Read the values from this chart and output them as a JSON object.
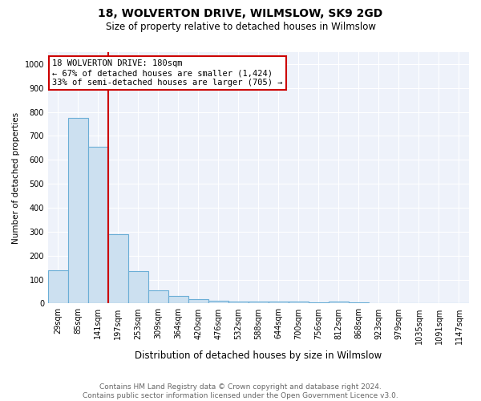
{
  "title": "18, WOLVERTON DRIVE, WILMSLOW, SK9 2GD",
  "subtitle": "Size of property relative to detached houses in Wilmslow",
  "xlabel": "Distribution of detached houses by size in Wilmslow",
  "ylabel": "Number of detached properties",
  "bar_labels": [
    "29sqm",
    "85sqm",
    "141sqm",
    "197sqm",
    "253sqm",
    "309sqm",
    "364sqm",
    "420sqm",
    "476sqm",
    "532sqm",
    "588sqm",
    "644sqm",
    "700sqm",
    "756sqm",
    "812sqm",
    "868sqm",
    "923sqm",
    "979sqm",
    "1035sqm",
    "1091sqm",
    "1147sqm"
  ],
  "bar_values": [
    140,
    775,
    655,
    290,
    137,
    55,
    30,
    17,
    13,
    8,
    8,
    7,
    8,
    5,
    8,
    5,
    0,
    0,
    0,
    0,
    0
  ],
  "bar_color": "#cce0f0",
  "bar_edge_color": "#6baed6",
  "vline_color": "#cc0000",
  "vline_position": 2.5,
  "annotation_text_line1": "18 WOLVERTON DRIVE: 180sqm",
  "annotation_text_line2": "← 67% of detached houses are smaller (1,424)",
  "annotation_text_line3": "33% of semi-detached houses are larger (705) →",
  "ylim": [
    0,
    1050
  ],
  "yticks": [
    0,
    100,
    200,
    300,
    400,
    500,
    600,
    700,
    800,
    900,
    1000
  ],
  "footer_line1": "Contains HM Land Registry data © Crown copyright and database right 2024.",
  "footer_line2": "Contains public sector information licensed under the Open Government Licence v3.0.",
  "background_color": "#ffffff",
  "plot_background_color": "#eef2fa",
  "grid_color": "#ffffff",
  "title_fontsize": 10,
  "subtitle_fontsize": 8.5,
  "xlabel_fontsize": 8.5,
  "ylabel_fontsize": 7.5,
  "tick_fontsize": 7,
  "annotation_fontsize": 7.5,
  "footer_fontsize": 6.5
}
